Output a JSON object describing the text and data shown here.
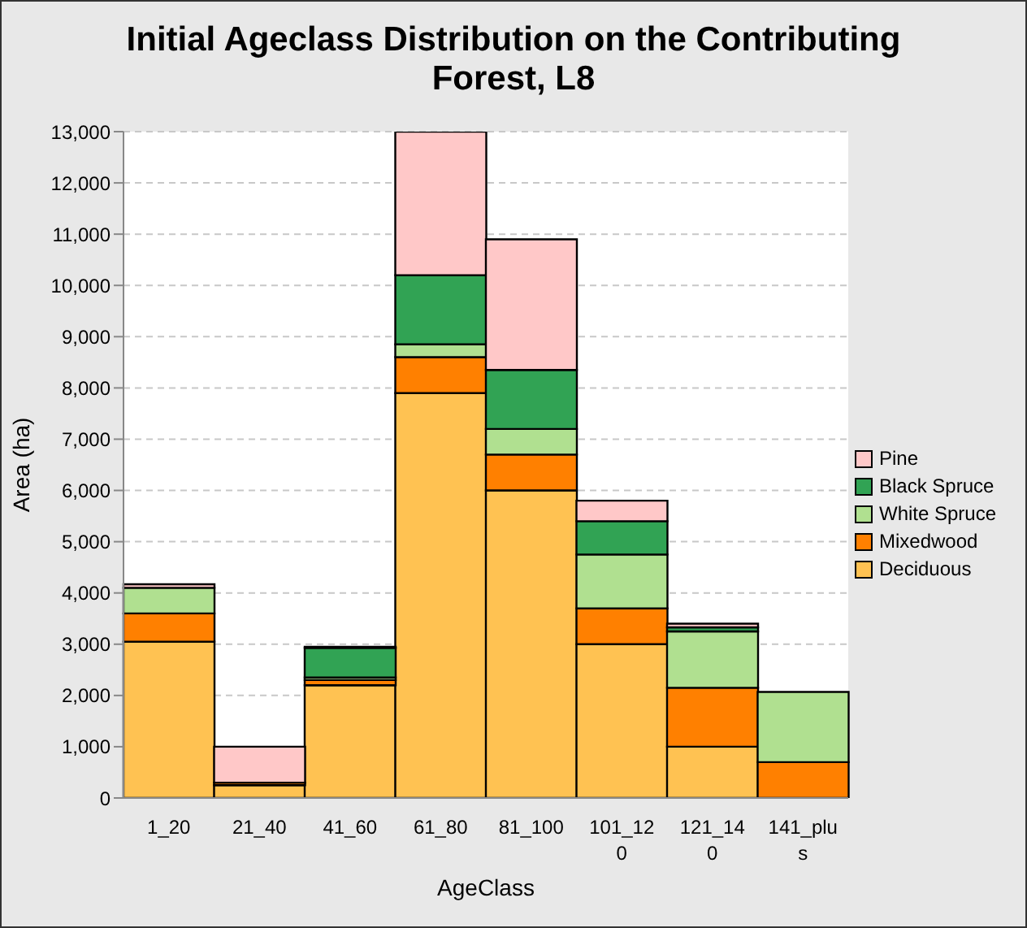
{
  "chart_data": {
    "type": "bar",
    "title": "Initial Ageclass Distribution on the Contributing Forest, L8",
    "xlabel": "AgeClass",
    "ylabel": "Area (ha)",
    "categories": [
      "1_20",
      "21_40",
      "41_60",
      "61_80",
      "81_100",
      "101_120",
      "121_140",
      "141_plus"
    ],
    "stacked": true,
    "ylim": [
      0,
      13000
    ],
    "yticks": [
      {
        "value": 0,
        "label": "0"
      },
      {
        "value": 1000,
        "label": "1,000"
      },
      {
        "value": 2000,
        "label": "2,000"
      },
      {
        "value": 3000,
        "label": "3,000"
      },
      {
        "value": 4000,
        "label": "4,000"
      },
      {
        "value": 5000,
        "label": "5,000"
      },
      {
        "value": 6000,
        "label": "6,000"
      },
      {
        "value": 7000,
        "label": "7,000"
      },
      {
        "value": 8000,
        "label": "8,000"
      },
      {
        "value": 9000,
        "label": "9,000"
      },
      {
        "value": 10000,
        "label": "10,000"
      },
      {
        "value": 11000,
        "label": "11,000"
      },
      {
        "value": 12000,
        "label": "12,000"
      },
      {
        "value": 13000,
        "label": "13,000"
      }
    ],
    "grid": "y",
    "legend": "right",
    "series": [
      {
        "name": "Deciduous",
        "color": "#ffc252",
        "values": [
          3050,
          250,
          2200,
          7900,
          6000,
          3000,
          1000,
          null
        ]
      },
      {
        "name": "Mixedwood",
        "color": "#ff8000",
        "values": [
          550,
          50,
          100,
          700,
          700,
          700,
          1150,
          700
        ]
      },
      {
        "name": "White Spruce",
        "color": "#b0e090",
        "values": [
          500,
          0,
          50,
          250,
          500,
          1050,
          1100,
          1370
        ]
      },
      {
        "name": "Black Spruce",
        "color": "#31a354",
        "values": [
          null,
          0,
          580,
          1350,
          1150,
          650,
          80,
          0
        ]
      },
      {
        "name": "Pine",
        "color": "#ffc8c8",
        "values": [
          70,
          700,
          20,
          2800,
          2550,
          400,
          70,
          0
        ]
      }
    ]
  }
}
